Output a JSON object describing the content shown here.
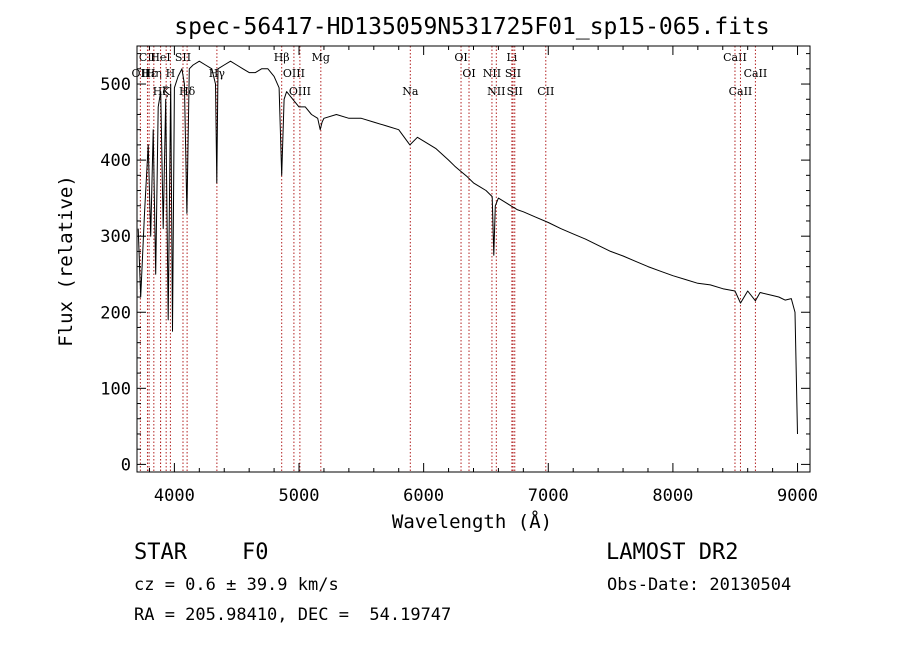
{
  "chart_data": {
    "type": "line",
    "title": "spec-56417-HD135059N531725F01_sp15-065.fits",
    "xlabel": "Wavelength (Å)",
    "ylabel": "Flux (relative)",
    "xlim": [
      3700,
      9100
    ],
    "ylim": [
      -10,
      550
    ],
    "xticks": [
      4000,
      5000,
      6000,
      7000,
      8000,
      9000
    ],
    "yticks": [
      0,
      100,
      200,
      300,
      400,
      500
    ],
    "grid": false,
    "legend": "none",
    "line_color": "#000000",
    "marker_color": "#b22222",
    "series": [
      {
        "x": [
          3710,
          3730,
          3760,
          3790,
          3810,
          3830,
          3850,
          3870,
          3890,
          3910,
          3930,
          3950,
          3970,
          3985,
          4000,
          4030,
          4060,
          4080,
          4100,
          4120,
          4150,
          4200,
          4250,
          4300,
          4330,
          4340,
          4350,
          4400,
          4450,
          4500,
          4550,
          4600,
          4650,
          4700,
          4750,
          4800,
          4840,
          4861,
          4880,
          4900,
          4950,
          5000,
          5050,
          5100,
          5150,
          5170,
          5185,
          5200,
          5300,
          5400,
          5500,
          5600,
          5700,
          5800,
          5890,
          5950,
          6000,
          6100,
          6200,
          6250,
          6300,
          6350,
          6400,
          6450,
          6500,
          6550,
          6563,
          6575,
          6600,
          6650,
          6700,
          6750,
          6800,
          6900,
          7000,
          7100,
          7200,
          7300,
          7400,
          7500,
          7600,
          7700,
          7800,
          7900,
          8000,
          8100,
          8200,
          8300,
          8400,
          8498,
          8542,
          8600,
          8662,
          8700,
          8800,
          8850,
          8900,
          8950,
          8980,
          9000
        ],
        "y": [
          310,
          220,
          330,
          420,
          300,
          440,
          250,
          470,
          490,
          310,
          480,
          190,
          500,
          175,
          495,
          510,
          520,
          500,
          330,
          520,
          525,
          530,
          525,
          520,
          500,
          370,
          520,
          525,
          530,
          525,
          520,
          515,
          515,
          520,
          520,
          510,
          495,
          380,
          480,
          490,
          480,
          470,
          470,
          460,
          455,
          440,
          450,
          455,
          460,
          455,
          455,
          450,
          445,
          440,
          420,
          430,
          425,
          415,
          400,
          392,
          385,
          378,
          370,
          365,
          360,
          352,
          275,
          340,
          350,
          345,
          340,
          335,
          332,
          325,
          318,
          310,
          303,
          296,
          288,
          280,
          274,
          267,
          260,
          254,
          248,
          243,
          238,
          236,
          231,
          228,
          212,
          228,
          215,
          226,
          222,
          220,
          216,
          218,
          200,
          40
        ]
      }
    ],
    "line_markers": [
      {
        "label": "CII",
        "x": 3784,
        "row": 1
      },
      {
        "label": "OII",
        "x": 3727,
        "row": 2
      },
      {
        "label": "Hε",
        "x": 3797,
        "row": 2
      },
      {
        "label": "Hη",
        "x": 3835,
        "row": 2
      },
      {
        "label": "Hζ",
        "x": 3889,
        "row": 3
      },
      {
        "label": "HeI",
        "x": 3889,
        "row": 1
      },
      {
        "label": "K",
        "x": 3934,
        "row": 3
      },
      {
        "label": "H",
        "x": 3968,
        "row": 2
      },
      {
        "label": "SII",
        "x": 4069,
        "row": 1
      },
      {
        "label": "Hδ",
        "x": 4102,
        "row": 3
      },
      {
        "label": "Hγ",
        "x": 4341,
        "row": 2
      },
      {
        "label": "Hβ",
        "x": 4861,
        "row": 1
      },
      {
        "label": "OIII",
        "x": 4959,
        "row": 2
      },
      {
        "label": "OIII",
        "x": 5007,
        "row": 3
      },
      {
        "label": "Mg",
        "x": 5175,
        "row": 1
      },
      {
        "label": "Na",
        "x": 5893,
        "row": 3
      },
      {
        "label": "OI",
        "x": 6300,
        "row": 1
      },
      {
        "label": "OI",
        "x": 6364,
        "row": 2
      },
      {
        "label": "NII",
        "x": 6548,
        "row": 2
      },
      {
        "label": "NII",
        "x": 6583,
        "row": 3
      },
      {
        "label": "Li",
        "x": 6708,
        "row": 1
      },
      {
        "label": "SII",
        "x": 6717,
        "row": 2
      },
      {
        "label": "SII",
        "x": 6731,
        "row": 3
      },
      {
        "label": "CII",
        "x": 6980,
        "row": 3
      },
      {
        "label": "CaII",
        "x": 8498,
        "row": 1
      },
      {
        "label": "CaII",
        "x": 8542,
        "row": 3
      },
      {
        "label": "CaII",
        "x": 8662,
        "row": 2
      }
    ]
  },
  "info": {
    "object_class": "STAR",
    "subclass": "F0",
    "survey": "LAMOST DR2",
    "redshift": "cz = 0.6 ± 39.9 km/s",
    "obs_date": "Obs-Date: 20130504",
    "coords": "RA = 205.98410, DEC =  54.19747"
  }
}
